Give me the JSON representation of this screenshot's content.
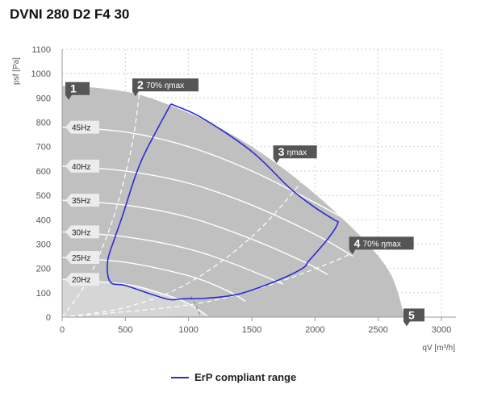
{
  "title": "DVNI 280 D2 F4 30",
  "chart_data": {
    "type": "line",
    "xlabel": "qV [m³/h]",
    "ylabel": "psf [Pa]",
    "xlim": [
      0,
      3000
    ],
    "ylim": [
      0,
      1100
    ],
    "x_ticks": [
      0,
      500,
      1000,
      1500,
      2000,
      2500,
      3000
    ],
    "y_ticks": [
      0,
      100,
      200,
      300,
      400,
      500,
      600,
      700,
      800,
      900,
      1000,
      1100
    ],
    "grid": "dotted",
    "fan_envelope": [
      [
        0,
        950
      ],
      [
        300,
        940
      ],
      [
        600,
        915
      ],
      [
        900,
        860
      ],
      [
        1200,
        790
      ],
      [
        1500,
        700
      ],
      [
        1800,
        590
      ],
      [
        2100,
        460
      ],
      [
        2400,
        310
      ],
      [
        2600,
        175
      ],
      [
        2700,
        20
      ],
      [
        2700,
        0
      ],
      [
        0,
        0
      ]
    ],
    "speed_curves": [
      {
        "name": "45Hz",
        "points": [
          [
            0,
            780
          ],
          [
            500,
            760
          ],
          [
            1000,
            700
          ],
          [
            1500,
            600
          ],
          [
            2000,
            470
          ],
          [
            2350,
            370
          ]
        ]
      },
      {
        "name": "40Hz",
        "points": [
          [
            0,
            620
          ],
          [
            500,
            600
          ],
          [
            1000,
            550
          ],
          [
            1500,
            460
          ],
          [
            2000,
            340
          ],
          [
            2300,
            250
          ]
        ]
      },
      {
        "name": "35Hz",
        "points": [
          [
            0,
            480
          ],
          [
            500,
            460
          ],
          [
            1000,
            410
          ],
          [
            1500,
            320
          ],
          [
            1900,
            230
          ],
          [
            2100,
            175
          ]
        ]
      },
      {
        "name": "30Hz",
        "points": [
          [
            0,
            350
          ],
          [
            500,
            330
          ],
          [
            1000,
            280
          ],
          [
            1400,
            210
          ],
          [
            1750,
            135
          ]
        ]
      },
      {
        "name": "25Hz",
        "points": [
          [
            0,
            245
          ],
          [
            500,
            225
          ],
          [
            1000,
            170
          ],
          [
            1300,
            110
          ],
          [
            1450,
            65
          ]
        ]
      },
      {
        "name": "20Hz",
        "points": [
          [
            0,
            155
          ],
          [
            500,
            135
          ],
          [
            800,
            95
          ],
          [
            1000,
            55
          ],
          [
            1150,
            5
          ]
        ]
      }
    ],
    "system_curves": [
      {
        "label": "2",
        "note": "70% ηmax",
        "points": [
          [
            0,
            0
          ],
          [
            200,
            150
          ],
          [
            400,
            400
          ],
          [
            550,
            700
          ],
          [
            620,
            960
          ]
        ]
      },
      {
        "label": "3",
        "note": "ηmax",
        "points": [
          [
            0,
            0
          ],
          [
            500,
            40
          ],
          [
            1000,
            140
          ],
          [
            1500,
            330
          ],
          [
            1900,
            560
          ],
          [
            2100,
            720
          ]
        ]
      },
      {
        "label": "4",
        "note": "70% ηmax",
        "points": [
          [
            0,
            0
          ],
          [
            1000,
            50
          ],
          [
            1600,
            125
          ],
          [
            2200,
            240
          ],
          [
            2350,
            290
          ]
        ]
      }
    ],
    "markers": [
      {
        "label": "1",
        "note": ""
      },
      {
        "label": "2",
        "note": "70% ηmax"
      },
      {
        "label": "3",
        "note": "ηmax"
      },
      {
        "label": "4",
        "note": "70% ηmax"
      },
      {
        "label": "5",
        "note": ""
      }
    ],
    "erp_range": [
      [
        860,
        875
      ],
      [
        1100,
        820
      ],
      [
        1500,
        680
      ],
      [
        1800,
        530
      ],
      [
        2000,
        450
      ],
      [
        2150,
        400
      ],
      [
        2180,
        385
      ],
      [
        2100,
        320
      ],
      [
        1950,
        230
      ],
      [
        1900,
        200
      ],
      [
        1700,
        150
      ],
      [
        1400,
        95
      ],
      [
        1150,
        78
      ],
      [
        950,
        75
      ],
      [
        850,
        72
      ],
      [
        700,
        95
      ],
      [
        500,
        130
      ],
      [
        380,
        145
      ],
      [
        360,
        230
      ],
      [
        420,
        330
      ],
      [
        480,
        420
      ],
      [
        580,
        580
      ],
      [
        670,
        690
      ],
      [
        860,
        875
      ]
    ],
    "legend": [
      {
        "name": "ErP compliant range",
        "color": "#2b2bd6"
      }
    ]
  },
  "colors": {
    "envelope": "#c0c0c0",
    "lowregion": "#d6d6d6",
    "speed": "#ffffff",
    "erp": "#2b2bd6",
    "marker_bg": "#555555"
  }
}
